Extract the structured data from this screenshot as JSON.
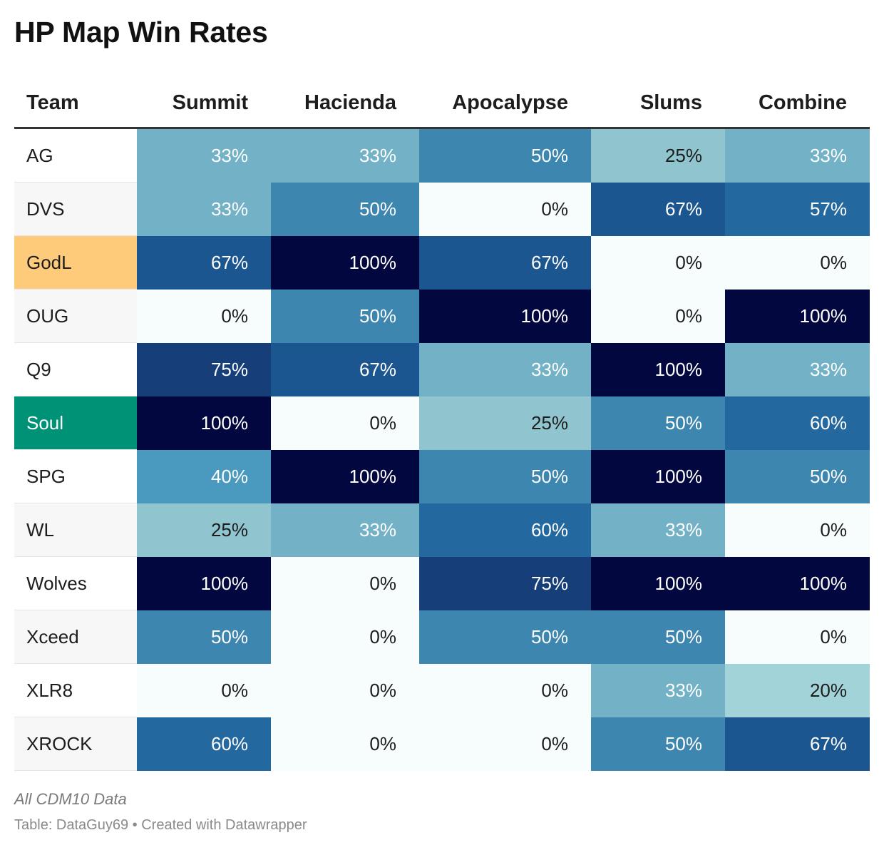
{
  "title": "HP Map Win Rates",
  "note": "All CDM10 Data",
  "source": "Table: DataGuy69 • Created with Datawrapper",
  "colors": {
    "scale": [
      "#f7fcfd",
      "#a2d3d8",
      "#90c5d0",
      "#72b1c6",
      "#4a9ac0",
      "#3d86b0",
      "#2468a0",
      "#1c5690",
      "#163f7a",
      "#020740"
    ],
    "godl_highlight": "#fecb7a",
    "soul_highlight": "#009276",
    "stripe": "#f7f7f7"
  },
  "chart_data": {
    "type": "table",
    "columns": [
      "Team",
      "Summit",
      "Hacienda",
      "Apocalypse",
      "Slums",
      "Combine"
    ],
    "rows": [
      {
        "team": "AG",
        "values": [
          33,
          33,
          50,
          25,
          33
        ]
      },
      {
        "team": "DVS",
        "values": [
          33,
          50,
          0,
          67,
          57
        ]
      },
      {
        "team": "GodL",
        "values": [
          67,
          100,
          67,
          0,
          0
        ]
      },
      {
        "team": "OUG",
        "values": [
          0,
          50,
          100,
          0,
          100
        ]
      },
      {
        "team": "Q9",
        "values": [
          75,
          67,
          33,
          100,
          33
        ]
      },
      {
        "team": "Soul",
        "values": [
          100,
          0,
          25,
          50,
          60
        ]
      },
      {
        "team": "SPG",
        "values": [
          40,
          100,
          50,
          100,
          50
        ]
      },
      {
        "team": "WL",
        "values": [
          25,
          33,
          60,
          33,
          0
        ]
      },
      {
        "team": "Wolves",
        "values": [
          100,
          0,
          75,
          100,
          100
        ]
      },
      {
        "team": "Xceed",
        "values": [
          50,
          0,
          50,
          50,
          0
        ]
      },
      {
        "team": "XLR8",
        "values": [
          0,
          0,
          0,
          33,
          20
        ]
      },
      {
        "team": "XROCK",
        "values": [
          60,
          0,
          0,
          50,
          67
        ]
      }
    ],
    "value_suffix": "%"
  }
}
